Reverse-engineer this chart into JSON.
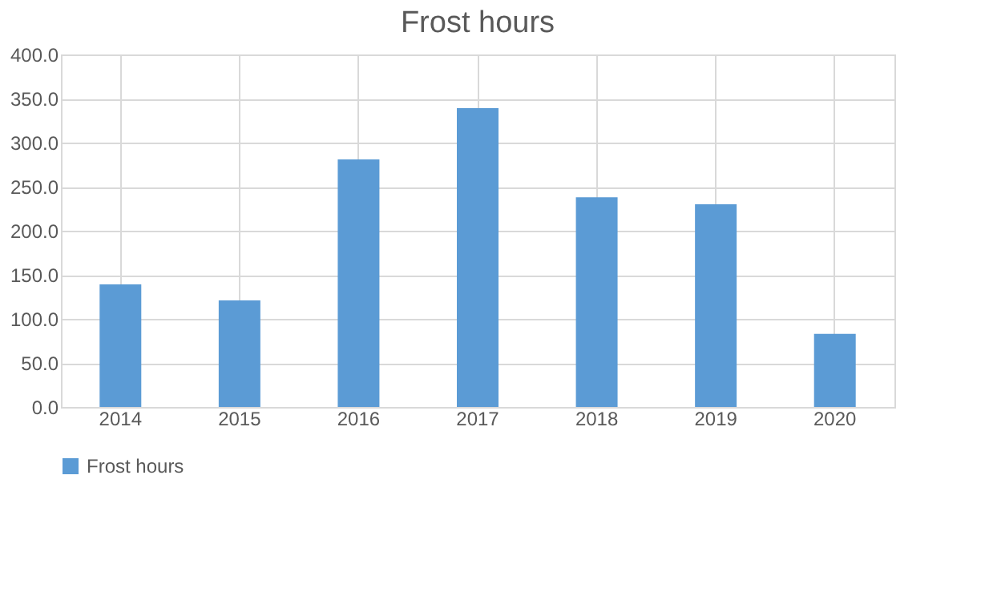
{
  "chart_data": {
    "type": "bar",
    "title": "Frost hours",
    "categories": [
      "2014",
      "2015",
      "2016",
      "2017",
      "2018",
      "2019",
      "2020"
    ],
    "series": [
      {
        "name": "Frost hours",
        "color": "#5b9bd5",
        "values": [
          139,
          121,
          281,
          339,
          238,
          230,
          83
        ]
      }
    ],
    "ylim": [
      0,
      400
    ],
    "yticks": [
      {
        "value": 0,
        "label": "0.0"
      },
      {
        "value": 50,
        "label": "50.0"
      },
      {
        "value": 100,
        "label": "100.0"
      },
      {
        "value": 150,
        "label": "150.0"
      },
      {
        "value": 200,
        "label": "200.0"
      },
      {
        "value": 250,
        "label": "250.0"
      },
      {
        "value": 300,
        "label": "300.0"
      },
      {
        "value": 350,
        "label": "350.0"
      },
      {
        "value": 400,
        "label": "400.0"
      }
    ],
    "grid": true,
    "legend": "bottom"
  }
}
